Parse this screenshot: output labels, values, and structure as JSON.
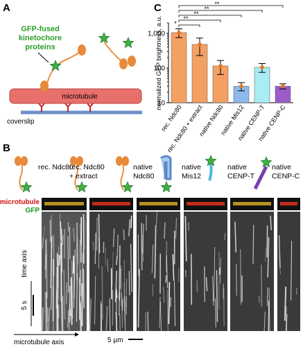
{
  "panels": {
    "a": {
      "label": "A",
      "callout": [
        "GFP-fused",
        "kinetochore",
        "proteins"
      ],
      "microtubule": "microtubule",
      "coverslip": "coverslip"
    },
    "b": {
      "label": "B",
      "constructs": [
        [
          "rec. Ndc80"
        ],
        [
          "rec. Ndc80",
          "+ extract"
        ],
        [
          "native",
          "Ndc80"
        ],
        [
          "native",
          "Mis12"
        ],
        [
          "native",
          "CENP-T"
        ],
        [
          "native",
          "CENP-C"
        ]
      ],
      "channels": [
        "microtubule",
        "GFP"
      ],
      "time_axis": "time axis",
      "time_scale": "5 s",
      "space_axis": "microtubule axis",
      "space_scale": "5 µm"
    },
    "c": {
      "label": "C"
    }
  },
  "chart_data": {
    "type": "bar",
    "y_label": "normalized GFP brightness, a.u.",
    "categories": [
      "rec. Ndc80",
      "rec. Ndc80 + extract",
      "native Ndc80",
      "native Mis12",
      "native CENP-T",
      "native CENP-C"
    ],
    "values": [
      1050,
      480,
      115,
      30,
      105,
      30
    ],
    "errors": [
      300,
      250,
      50,
      8,
      30,
      5
    ],
    "colors": [
      "#f4a063",
      "#f4a063",
      "#f4a063",
      "#8db8ea",
      "#a9ecf3",
      "#9b5cc9"
    ],
    "ylim": [
      10,
      2000
    ],
    "yticks": [
      10,
      100,
      {
        "value": 1000,
        "label": "1,000"
      }
    ],
    "log_scale": true,
    "grid": false,
    "significance": [
      "**",
      "**",
      "**",
      "**",
      "*"
    ]
  }
}
